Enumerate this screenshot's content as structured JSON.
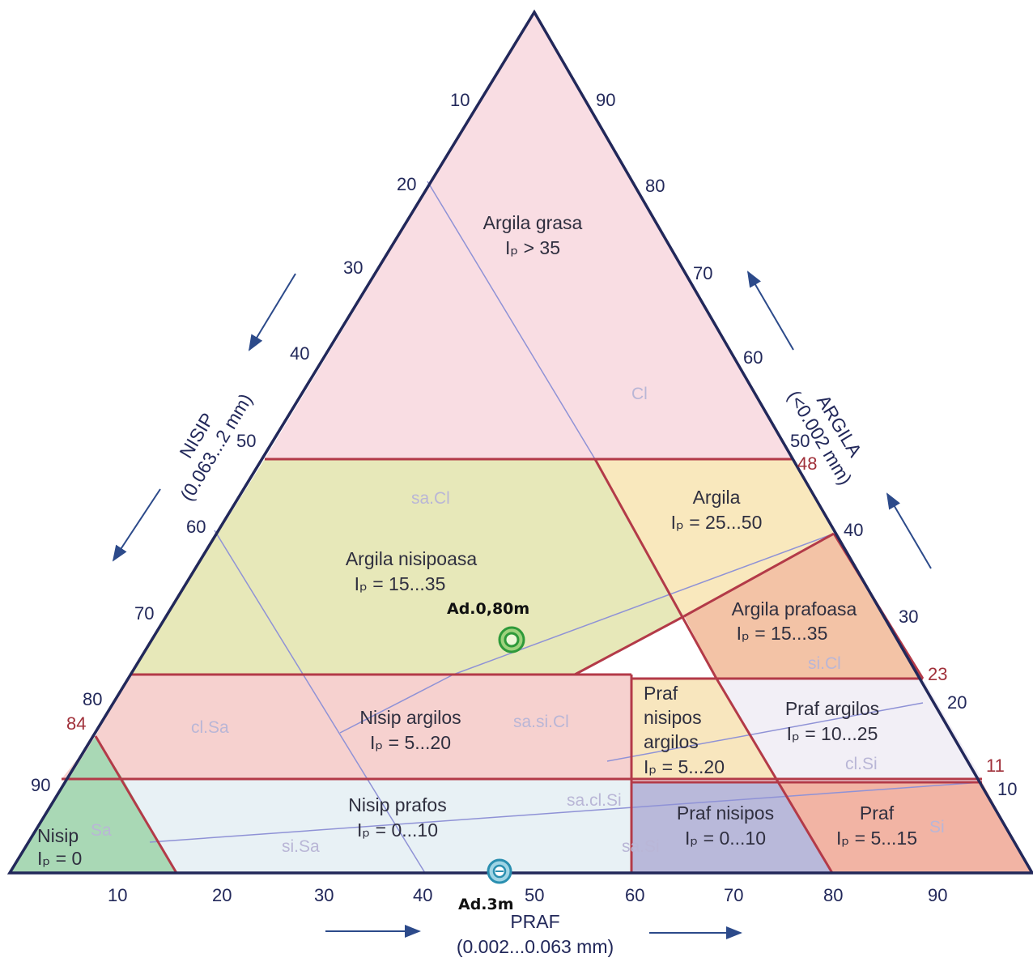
{
  "axes": {
    "left": {
      "title": "NISIP",
      "subtitle": "(0.063...2 mm)",
      "ticks": [
        "10",
        "20",
        "30",
        "40",
        "50",
        "60",
        "70",
        "80",
        "90"
      ],
      "marker": "84"
    },
    "right": {
      "title": "ARGILA",
      "subtitle": "(<0.002 mm)",
      "ticks": [
        "90",
        "80",
        "70",
        "60",
        "50",
        "40",
        "30",
        "20",
        "10"
      ],
      "markers": [
        "48",
        "23",
        "11"
      ]
    },
    "bottom": {
      "title": "PRAF",
      "subtitle": "(0.002...0.063 mm)",
      "ticks": [
        "10",
        "20",
        "30",
        "40",
        "50",
        "60",
        "70",
        "80",
        "90"
      ]
    }
  },
  "zones": [
    {
      "id": "argila-grasa",
      "name": "Argila grasa",
      "ip": "Iₚ > 35",
      "color": "#f9dde3"
    },
    {
      "id": "argila-nisipoasa",
      "name": "Argila nisipoasa",
      "ip": "Iₚ = 15...35",
      "color": "#e7e8b9"
    },
    {
      "id": "argila",
      "name": "Argila",
      "ip": "Iₚ = 25...50",
      "color": "#f9e8bd"
    },
    {
      "id": "argila-prafoasa",
      "name": "Argila prafoasa",
      "ip": "Iₚ = 15...35",
      "color": "#f3c3a6"
    },
    {
      "id": "nisip-argilos",
      "name": "Nisip argilos",
      "ip": "Iₚ = 5...20",
      "color": "#f6d1cf"
    },
    {
      "id": "praf-nisipos-argilos",
      "name": "Praf nisipos argilos",
      "lines": [
        "Praf",
        "nisipos",
        "argilos"
      ],
      "ip": "Iₚ = 5...20",
      "color": "#f8e6be"
    },
    {
      "id": "praf-argilos",
      "name": "Praf argilos",
      "ip": "Iₚ = 10...25",
      "color": "#f2eff6"
    },
    {
      "id": "nisip-prafos",
      "name": "Nisip prafos",
      "ip": "Iₚ = 0...10",
      "color": "#e8f1f5"
    },
    {
      "id": "praf-nisipos",
      "name": "Praf nisipos",
      "ip": "Iₚ = 0...10",
      "color": "#b9b9da"
    },
    {
      "id": "praf",
      "name": "Praf",
      "ip": "Iₚ = 5...15",
      "color": "#f2b4a4"
    },
    {
      "id": "nisip",
      "name": "Nisip",
      "ip": "Iₚ = 0",
      "color": "#a9d8b5"
    }
  ],
  "codes": [
    "Cl",
    "sa.Cl",
    "si.Cl",
    "cl.Sa",
    "sa.si.Cl",
    "cl.Si",
    "sa.cl.Si",
    "si.Sa",
    "sa.Si",
    "Si",
    "Sa"
  ],
  "samples": [
    {
      "label": "Ad.0,80m",
      "color": "#2e9a3a"
    },
    {
      "label": "Ad.3m",
      "color": "#2a8fb0"
    }
  ]
}
